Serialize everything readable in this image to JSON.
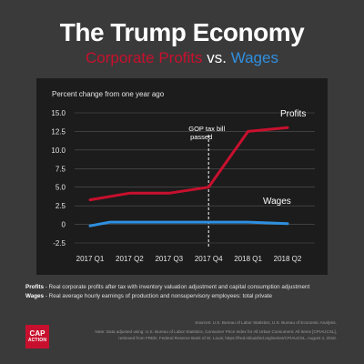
{
  "header": {
    "title": "The Trump Economy",
    "subtitle_profits": "Corporate Profits",
    "subtitle_vs": " vs. ",
    "subtitle_wages": "Wages"
  },
  "colors": {
    "profits": "#c8102e",
    "wages": "#2f8fe0",
    "background": "#3a3a3a",
    "plot_background": "#1c1c1c"
  },
  "chart_data": {
    "type": "line",
    "ylabel": "Percent change from one year ago",
    "categories": [
      "2017 Q1",
      "2017 Q2",
      "2017 Q3",
      "2017 Q4",
      "2018 Q1",
      "2018 Q2"
    ],
    "yticks": [
      "15.0",
      "12.5",
      "10.0",
      "7.5",
      "5.0",
      "2.5",
      "0",
      "-2.5"
    ],
    "ylim": [
      -2.5,
      15.0
    ],
    "grid": true,
    "series": [
      {
        "name": "Profits",
        "x": [
          0,
          1,
          2,
          3,
          4,
          5
        ],
        "values": [
          3.3,
          4.2,
          4.2,
          5.0,
          12.5,
          13.0
        ]
      },
      {
        "name": "Wages",
        "x": [
          0,
          0.5,
          1,
          2,
          3,
          4,
          5
        ],
        "values": [
          -0.2,
          0.3,
          0.3,
          0.3,
          0.3,
          0.3,
          0.1
        ]
      }
    ],
    "annotation": {
      "text_line1": "GOP tax bill",
      "text_line2": "passed",
      "x": 3
    }
  },
  "notes": {
    "profits_label": "Profits",
    "profits_text": " - Real corporate profits after tax with inventory valuation adjustment and capital consumption adjustment",
    "wages_label": "Wages",
    "wages_text": " - Real average hourly earnings of production and nonsupervisory employees: total private"
  },
  "sources": {
    "line1": "Sources: U.S. Bureau of Labor Statistics, U.S. Bureau of Economic Analysis.",
    "line2": "Note: Data adjusted using: U.S. Bureau of Labor Statistics, Consumer Price Index for All Urban Consumers: All Items [CPIAUCSL],",
    "line3": "retrieved from FRED, Federal Reserve Bank of St. Louis; https://fred.stlouisfed.org/series/CPIAUCSL, August 4, 2018."
  },
  "logo": {
    "line1": "CAP",
    "line2": "ACTION"
  }
}
